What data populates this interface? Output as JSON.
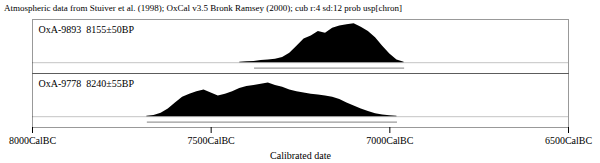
{
  "chart_data": {
    "type": "area",
    "title": "Atmospheric data from Stuiver et al. (1998); OxCal v3.5 Bronk Ramsey (2000); cub r:4 sd:12 prob usp[chron]",
    "x_label": "Calibrated date",
    "xlim": [
      -8000,
      -6500
    ],
    "xticks": [
      {
        "value": -8000,
        "label": "8000CalBC"
      },
      {
        "value": -7500,
        "label": "7500CalBC"
      },
      {
        "value": -7000,
        "label": "7000CalBC"
      },
      {
        "value": -6500,
        "label": "6500CalBC"
      }
    ],
    "ylim": [
      -0.25,
      1
    ],
    "tick_labels": "x",
    "grid": false,
    "series": [
      {
        "name": "OxA-9893  8155±50BP",
        "color": "#000000",
        "x": [
          -7420,
          -7400,
          -7380,
          -7360,
          -7340,
          -7320,
          -7300,
          -7280,
          -7260,
          -7240,
          -7220,
          -7200,
          -7180,
          -7160,
          -7140,
          -7120,
          -7100,
          -7080,
          -7060,
          -7040,
          -7020,
          -7000,
          -6980,
          -6960
        ],
        "values": [
          0.01,
          0.02,
          0.03,
          0.05,
          0.06,
          0.08,
          0.12,
          0.22,
          0.38,
          0.55,
          0.62,
          0.72,
          0.68,
          0.8,
          0.85,
          0.88,
          0.9,
          0.82,
          0.72,
          0.58,
          0.38,
          0.2,
          0.06,
          0.01
        ],
        "ci": [
          -7380,
          -6960
        ]
      },
      {
        "name": "OxA-9778  8240±55BP",
        "color": "#000000",
        "x": [
          -7680,
          -7660,
          -7640,
          -7620,
          -7600,
          -7580,
          -7560,
          -7540,
          -7520,
          -7500,
          -7480,
          -7460,
          -7440,
          -7420,
          -7400,
          -7380,
          -7360,
          -7340,
          -7320,
          -7300,
          -7280,
          -7260,
          -7240,
          -7220,
          -7200,
          -7180,
          -7160,
          -7140,
          -7120,
          -7100,
          -7080,
          -7060,
          -7040,
          -7020,
          -7000,
          -6980
        ],
        "values": [
          0.01,
          0.03,
          0.08,
          0.18,
          0.32,
          0.45,
          0.52,
          0.58,
          0.62,
          0.55,
          0.48,
          0.52,
          0.58,
          0.65,
          0.7,
          0.72,
          0.75,
          0.78,
          0.72,
          0.68,
          0.62,
          0.58,
          0.55,
          0.52,
          0.5,
          0.48,
          0.45,
          0.4,
          0.32,
          0.25,
          0.18,
          0.12,
          0.07,
          0.04,
          0.02,
          0.01
        ],
        "ci": [
          -7680,
          -6980
        ]
      }
    ]
  }
}
